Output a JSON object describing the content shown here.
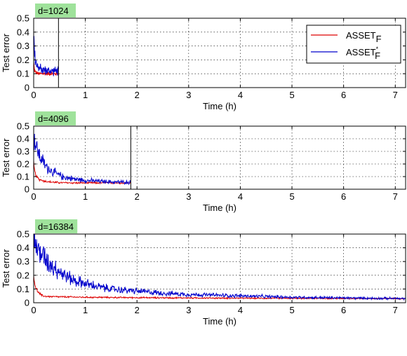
{
  "chart_data": [
    {
      "type": "line",
      "badge": "d=1024",
      "xlabel": "Time (h)",
      "ylabel": "Test error",
      "xlim": [
        0,
        7.2
      ],
      "ylim": [
        0,
        0.5
      ],
      "xticks": [
        0,
        1,
        2,
        3,
        4,
        5,
        6,
        7
      ],
      "yticks": [
        0,
        0.1,
        0.2,
        0.3,
        0.4,
        0.5
      ],
      "grid": true,
      "legend_position": "top-right",
      "vline": 0.48,
      "series": [
        {
          "name": "ASSET",
          "name_sub": "F",
          "name_sup": "",
          "color": "#dd0000",
          "x": [
            0,
            0.01,
            0.02,
            0.04,
            0.06,
            0.08,
            0.1,
            0.15,
            0.2,
            0.3,
            0.4,
            0.48
          ],
          "y": [
            0.18,
            0.14,
            0.12,
            0.11,
            0.105,
            0.1,
            0.1,
            0.1,
            0.1,
            0.1,
            0.1,
            0.1
          ]
        },
        {
          "name": "ASSET",
          "name_sub": "F",
          "name_sup": "*",
          "color": "#0000cc",
          "x": [
            0,
            0.01,
            0.02,
            0.04,
            0.06,
            0.08,
            0.1,
            0.15,
            0.2,
            0.3,
            0.4,
            0.48
          ],
          "y": [
            0.36,
            0.3,
            0.24,
            0.2,
            0.17,
            0.15,
            0.14,
            0.13,
            0.125,
            0.12,
            0.12,
            0.12
          ]
        }
      ]
    },
    {
      "type": "line",
      "badge": "d=4096",
      "xlabel": "Time (h)",
      "ylabel": "Test error",
      "xlim": [
        0,
        7.2
      ],
      "ylim": [
        0,
        0.5
      ],
      "xticks": [
        0,
        1,
        2,
        3,
        4,
        5,
        6,
        7
      ],
      "yticks": [
        0,
        0.1,
        0.2,
        0.3,
        0.4,
        0.5
      ],
      "grid": true,
      "vline": 1.88,
      "series": [
        {
          "name": "ASSET",
          "name_sub": "F",
          "name_sup": "",
          "color": "#dd0000",
          "x": [
            0,
            0.02,
            0.05,
            0.1,
            0.2,
            0.3,
            0.5,
            0.8,
            1.2,
            1.6,
            1.88
          ],
          "y": [
            0.2,
            0.14,
            0.1,
            0.08,
            0.065,
            0.058,
            0.052,
            0.05,
            0.05,
            0.05,
            0.05
          ]
        },
        {
          "name": "ASSET",
          "name_sub": "F",
          "name_sup": "*",
          "color": "#0000cc",
          "x": [
            0,
            0.03,
            0.1,
            0.2,
            0.3,
            0.4,
            0.5,
            0.6,
            0.8,
            1.0,
            1.2,
            1.5,
            1.88
          ],
          "y": [
            0.42,
            0.36,
            0.28,
            0.2,
            0.16,
            0.13,
            0.11,
            0.095,
            0.08,
            0.07,
            0.065,
            0.058,
            0.055
          ]
        }
      ]
    },
    {
      "type": "line",
      "badge": "d=16384",
      "xlabel": "Time (h)",
      "ylabel": "Test error",
      "xlim": [
        0,
        7.2
      ],
      "ylim": [
        0,
        0.5
      ],
      "xticks": [
        0,
        1,
        2,
        3,
        4,
        5,
        6,
        7
      ],
      "yticks": [
        0,
        0.1,
        0.2,
        0.3,
        0.4,
        0.5
      ],
      "grid": true,
      "series": [
        {
          "name": "ASSET",
          "name_sub": "F",
          "name_sup": "",
          "color": "#dd0000",
          "x": [
            0,
            0.02,
            0.05,
            0.1,
            0.15,
            0.2,
            0.3,
            0.5,
            1.0,
            2.0,
            3.0,
            4.0,
            5.0,
            6.0,
            7.2
          ],
          "y": [
            0.2,
            0.14,
            0.1,
            0.07,
            0.055,
            0.048,
            0.045,
            0.043,
            0.04,
            0.037,
            0.035,
            0.033,
            0.032,
            0.031,
            0.03
          ]
        },
        {
          "name": "ASSET",
          "name_sub": "F",
          "name_sup": "*",
          "color": "#0000cc",
          "x": [
            0,
            0.05,
            0.1,
            0.2,
            0.3,
            0.4,
            0.5,
            0.6,
            0.7,
            0.8,
            1.0,
            1.2,
            1.5,
            1.8,
            2.0,
            2.5,
            3.0,
            3.5,
            4.0,
            5.0,
            6.0,
            7.2
          ],
          "y": [
            0.45,
            0.42,
            0.38,
            0.33,
            0.29,
            0.26,
            0.23,
            0.2,
            0.18,
            0.16,
            0.14,
            0.12,
            0.1,
            0.09,
            0.085,
            0.07,
            0.06,
            0.055,
            0.05,
            0.04,
            0.035,
            0.03
          ]
        }
      ]
    }
  ]
}
